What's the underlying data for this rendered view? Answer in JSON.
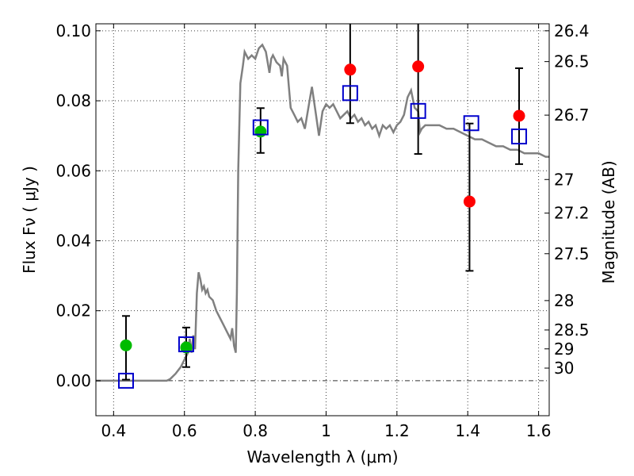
{
  "chart_data": {
    "type": "scatter",
    "title": "",
    "xlabel": "Wavelength  λ (μm)",
    "ylabel": "Flux  Fν  ( μJy )",
    "y2label": "Magnitude (AB)",
    "xlim": [
      0.35,
      1.63
    ],
    "ylim": [
      -0.01,
      0.102
    ],
    "xticks": [
      0.4,
      0.6,
      0.8,
      1.0,
      1.2,
      1.4,
      1.6
    ],
    "xtick_labels": [
      "0.4",
      "0.6",
      "0.8",
      "1",
      "1.2",
      "1.4",
      "1.6"
    ],
    "yticks": [
      0.0,
      0.02,
      0.04,
      0.06,
      0.08,
      0.1
    ],
    "ytick_labels": [
      "0.00",
      "0.02",
      "0.04",
      "0.06",
      "0.08",
      "0.10"
    ],
    "magnitude_ticks": [
      {
        "label": "26.4",
        "flux": 0.1
      },
      {
        "label": "26.5",
        "flux": 0.0912
      },
      {
        "label": "26.7",
        "flux": 0.0759
      },
      {
        "label": "27",
        "flux": 0.0575
      },
      {
        "label": "27.2",
        "flux": 0.0479
      },
      {
        "label": "27.5",
        "flux": 0.0363
      },
      {
        "label": "28",
        "flux": 0.0229
      },
      {
        "label": "28.5",
        "flux": 0.0145
      },
      {
        "label": "29",
        "flux": 0.0091
      },
      {
        "label": "30",
        "flux": 0.0036
      }
    ],
    "grid": true,
    "legend": "none",
    "series": [
      {
        "name": "model SED",
        "kind": "line",
        "color": "#808080",
        "x": [
          0.35,
          0.55,
          0.56,
          0.575,
          0.59,
          0.6,
          0.61,
          0.615,
          0.62,
          0.625,
          0.63,
          0.635,
          0.64,
          0.645,
          0.65,
          0.655,
          0.66,
          0.665,
          0.67,
          0.68,
          0.69,
          0.7,
          0.71,
          0.72,
          0.73,
          0.735,
          0.74,
          0.745,
          0.748,
          0.752,
          0.758,
          0.765,
          0.77,
          0.78,
          0.79,
          0.8,
          0.81,
          0.82,
          0.83,
          0.84,
          0.845,
          0.85,
          0.86,
          0.87,
          0.875,
          0.88,
          0.89,
          0.895,
          0.9,
          0.91,
          0.92,
          0.93,
          0.94,
          0.945,
          0.95,
          0.96,
          0.97,
          0.98,
          0.99,
          1.0,
          1.01,
          1.02,
          1.03,
          1.04,
          1.05,
          1.06,
          1.07,
          1.08,
          1.09,
          1.1,
          1.11,
          1.12,
          1.13,
          1.14,
          1.15,
          1.16,
          1.17,
          1.18,
          1.19,
          1.2,
          1.21,
          1.22,
          1.23,
          1.24,
          1.25,
          1.26,
          1.265,
          1.27,
          1.28,
          1.3,
          1.32,
          1.34,
          1.36,
          1.38,
          1.4,
          1.42,
          1.44,
          1.46,
          1.48,
          1.5,
          1.52,
          1.54,
          1.56,
          1.58,
          1.6,
          1.62,
          1.63
        ],
        "y": [
          0.0,
          0.0,
          0.0005,
          0.002,
          0.004,
          0.006,
          0.008,
          0.012,
          0.008,
          0.013,
          0.009,
          0.025,
          0.031,
          0.029,
          0.026,
          0.027,
          0.025,
          0.026,
          0.024,
          0.023,
          0.02,
          0.018,
          0.016,
          0.014,
          0.012,
          0.015,
          0.01,
          0.008,
          0.025,
          0.06,
          0.085,
          0.09,
          0.094,
          0.092,
          0.093,
          0.092,
          0.095,
          0.096,
          0.094,
          0.088,
          0.092,
          0.093,
          0.091,
          0.09,
          0.087,
          0.092,
          0.09,
          0.084,
          0.078,
          0.076,
          0.074,
          0.075,
          0.072,
          0.075,
          0.078,
          0.084,
          0.077,
          0.07,
          0.077,
          0.079,
          0.078,
          0.079,
          0.077,
          0.075,
          0.076,
          0.077,
          0.075,
          0.076,
          0.074,
          0.075,
          0.073,
          0.074,
          0.072,
          0.073,
          0.07,
          0.073,
          0.072,
          0.073,
          0.071,
          0.073,
          0.074,
          0.076,
          0.081,
          0.083,
          0.078,
          0.077,
          0.071,
          0.072,
          0.073,
          0.073,
          0.073,
          0.072,
          0.072,
          0.071,
          0.07,
          0.069,
          0.069,
          0.068,
          0.067,
          0.067,
          0.066,
          0.066,
          0.065,
          0.065,
          0.065,
          0.064,
          0.064
        ]
      },
      {
        "name": "observed (green)",
        "kind": "points",
        "color": "#00bb00",
        "points": [
          {
            "x": 0.435,
            "y": 0.0101,
            "err_low": 0.0003,
            "err_high": 0.0185
          },
          {
            "x": 0.605,
            "y": 0.0095,
            "err_low": 0.0039,
            "err_high": 0.0152
          },
          {
            "x": 0.815,
            "y": 0.0712,
            "err_low": 0.0651,
            "err_high": 0.0779
          }
        ]
      },
      {
        "name": "observed (red)",
        "kind": "points",
        "color": "#ff0000",
        "points": [
          {
            "x": 1.068,
            "y": 0.0889,
            "err_low": 0.0736,
            "err_high": 0.102
          },
          {
            "x": 1.26,
            "y": 0.0898,
            "err_low": 0.0648,
            "err_high": 0.102
          },
          {
            "x": 1.405,
            "y": 0.0512,
            "err_low": 0.0314,
            "err_high": 0.0735
          },
          {
            "x": 1.545,
            "y": 0.0757,
            "err_low": 0.0619,
            "err_high": 0.0893
          }
        ]
      },
      {
        "name": "model photometry",
        "kind": "squares",
        "color": "#0000cc",
        "points": [
          {
            "x": 0.435,
            "y": 0.0
          },
          {
            "x": 0.605,
            "y": 0.0104
          },
          {
            "x": 0.815,
            "y": 0.0724
          },
          {
            "x": 1.068,
            "y": 0.0822
          },
          {
            "x": 1.26,
            "y": 0.0771
          },
          {
            "x": 1.41,
            "y": 0.0736
          },
          {
            "x": 1.545,
            "y": 0.0698
          }
        ]
      }
    ]
  }
}
